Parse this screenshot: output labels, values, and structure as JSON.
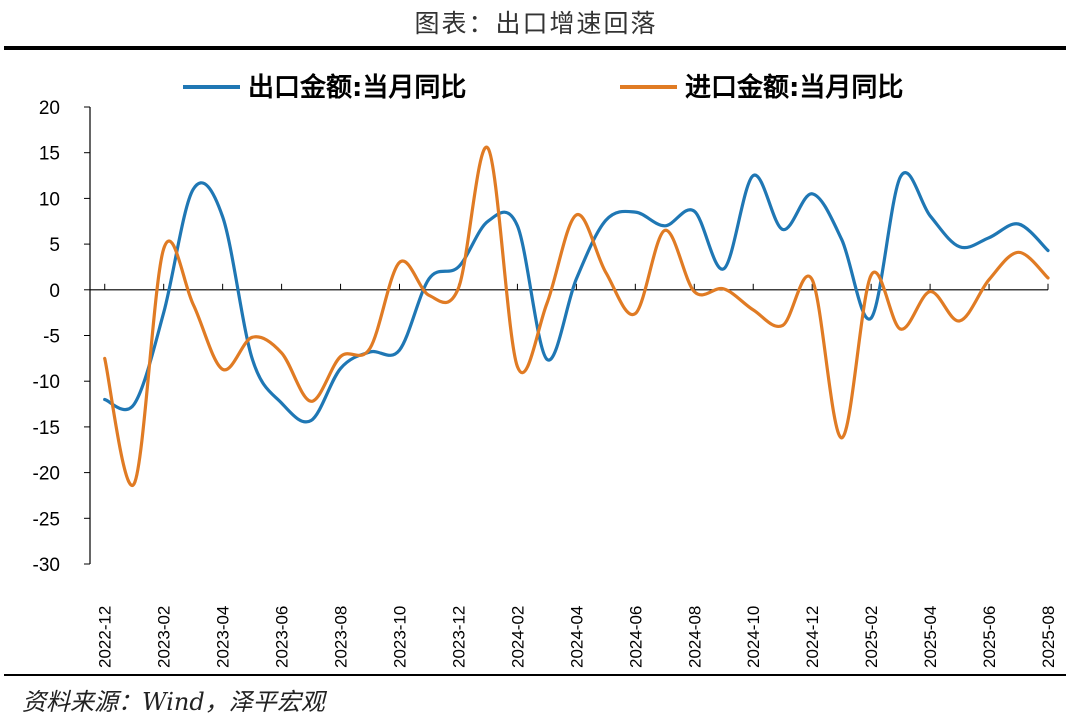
{
  "header": {
    "title": "图表：出口增速回落"
  },
  "footer": {
    "source": "资料来源：Wind，泽平宏观"
  },
  "colors": {
    "export": "#1f77b4",
    "import": "#e07b24",
    "axis": "#000000"
  },
  "chart_data": {
    "type": "line",
    "title": "",
    "xlabel": "",
    "ylabel": "",
    "ylim": [
      -30,
      20
    ],
    "yticks": [
      20,
      15,
      10,
      5,
      0,
      -5,
      -10,
      -15,
      -20,
      -25,
      -30
    ],
    "legend_position": "top",
    "x": [
      "2022-12",
      "2023-01",
      "2023-02",
      "2023-03",
      "2023-04",
      "2023-05",
      "2023-06",
      "2023-07",
      "2023-08",
      "2023-09",
      "2023-10",
      "2023-11",
      "2023-12",
      "2024-01",
      "2024-02",
      "2024-03",
      "2024-04",
      "2024-05",
      "2024-06",
      "2024-07",
      "2024-08",
      "2024-09",
      "2024-10",
      "2024-11",
      "2024-12",
      "2025-01",
      "2025-02",
      "2025-03",
      "2025-04",
      "2025-05",
      "2025-06",
      "2025-07",
      "2025-08"
    ],
    "xtick_labels": [
      "2022-12",
      "2023-02",
      "2023-04",
      "2023-06",
      "2023-08",
      "2023-10",
      "2023-12",
      "2024-02",
      "2024-04",
      "2024-06",
      "2024-08",
      "2024-10",
      "2024-12",
      "2025-02",
      "2025-04",
      "2025-06",
      "2025-08"
    ],
    "series": [
      {
        "name": "出口金额:当月同比",
        "color": "#1f77b4",
        "values": [
          -12.0,
          -12.5,
          -2.5,
          11.0,
          8.0,
          -7.5,
          -12.4,
          -14.3,
          -8.6,
          -6.8,
          -6.6,
          1.2,
          2.5,
          7.5,
          7.0,
          -7.6,
          1.2,
          7.6,
          8.5,
          7.0,
          8.6,
          2.3,
          12.5,
          6.6,
          10.5,
          5.5,
          -3.1,
          12.4,
          8.1,
          4.7,
          5.7,
          7.2,
          4.3
        ]
      },
      {
        "name": "进口金额:当月同比",
        "color": "#e07b24",
        "values": [
          -7.5,
          -21.2,
          4.5,
          -1.6,
          -8.7,
          -5.2,
          -6.9,
          -12.2,
          -7.3,
          -6.4,
          3.0,
          -0.6,
          0.2,
          15.5,
          -8.4,
          -1.5,
          8.2,
          1.9,
          -2.6,
          6.5,
          -0.2,
          0.1,
          -2.2,
          -3.9,
          1.1,
          -16.2,
          1.6,
          -4.3,
          -0.2,
          -3.4,
          1.1,
          4.1,
          1.3
        ]
      }
    ]
  }
}
